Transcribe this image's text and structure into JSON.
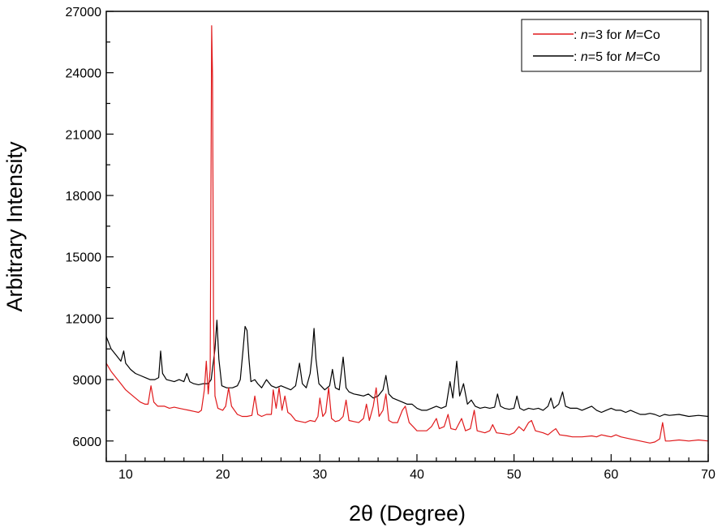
{
  "chart_data": {
    "type": "line",
    "xlabel": "2θ  (Degree)",
    "ylabel": "Arbitrary Intensity",
    "xlim": [
      8,
      70
    ],
    "ylim": [
      5000,
      27000
    ],
    "x_ticks": [
      10,
      20,
      30,
      40,
      50,
      60,
      70
    ],
    "y_ticks": [
      6000,
      9000,
      12000,
      15000,
      18000,
      21000,
      24000,
      27000
    ],
    "grid": false,
    "legend_position": "top-right",
    "series": [
      {
        "name": ": n=3 for M=Co",
        "name_parts": [
          ": ",
          "n",
          "=3 for ",
          "M",
          "=Co"
        ],
        "color": "#e0191b",
        "points": [
          [
            8.0,
            9800
          ],
          [
            8.5,
            9400
          ],
          [
            9.0,
            9100
          ],
          [
            9.5,
            8800
          ],
          [
            10.0,
            8500
          ],
          [
            10.5,
            8300
          ],
          [
            11.0,
            8100
          ],
          [
            11.5,
            7900
          ],
          [
            12.0,
            7800
          ],
          [
            12.3,
            7800
          ],
          [
            12.6,
            8700
          ],
          [
            12.9,
            7900
          ],
          [
            13.3,
            7700
          ],
          [
            14.0,
            7700
          ],
          [
            14.5,
            7600
          ],
          [
            15.0,
            7650
          ],
          [
            15.5,
            7600
          ],
          [
            16.0,
            7550
          ],
          [
            16.5,
            7500
          ],
          [
            17.0,
            7450
          ],
          [
            17.5,
            7400
          ],
          [
            17.8,
            7500
          ],
          [
            18.1,
            8500
          ],
          [
            18.3,
            9900
          ],
          [
            18.5,
            8300
          ],
          [
            18.7,
            9500
          ],
          [
            18.85,
            26300
          ],
          [
            18.95,
            23800
          ],
          [
            19.05,
            12000
          ],
          [
            19.2,
            8200
          ],
          [
            19.5,
            7600
          ],
          [
            20.0,
            7500
          ],
          [
            20.3,
            7700
          ],
          [
            20.6,
            8600
          ],
          [
            20.9,
            7700
          ],
          [
            21.5,
            7300
          ],
          [
            22.0,
            7200
          ],
          [
            22.5,
            7200
          ],
          [
            23.0,
            7250
          ],
          [
            23.3,
            8200
          ],
          [
            23.6,
            7300
          ],
          [
            24.0,
            7200
          ],
          [
            24.5,
            7300
          ],
          [
            25.0,
            7300
          ],
          [
            25.2,
            8500
          ],
          [
            25.5,
            7600
          ],
          [
            25.8,
            8600
          ],
          [
            26.1,
            7500
          ],
          [
            26.4,
            8200
          ],
          [
            26.7,
            7400
          ],
          [
            27.0,
            7300
          ],
          [
            27.5,
            7000
          ],
          [
            28.0,
            6950
          ],
          [
            28.5,
            6900
          ],
          [
            29.0,
            7000
          ],
          [
            29.5,
            6950
          ],
          [
            29.8,
            7200
          ],
          [
            30.0,
            8100
          ],
          [
            30.3,
            7200
          ],
          [
            30.6,
            7400
          ],
          [
            30.9,
            8600
          ],
          [
            31.2,
            7100
          ],
          [
            31.6,
            6950
          ],
          [
            32.0,
            7000
          ],
          [
            32.4,
            7200
          ],
          [
            32.7,
            8000
          ],
          [
            33.0,
            7000
          ],
          [
            33.5,
            6950
          ],
          [
            34.0,
            6900
          ],
          [
            34.5,
            7100
          ],
          [
            34.8,
            7800
          ],
          [
            35.1,
            7000
          ],
          [
            35.5,
            7700
          ],
          [
            35.8,
            8600
          ],
          [
            36.1,
            7200
          ],
          [
            36.5,
            7500
          ],
          [
            36.8,
            8300
          ],
          [
            37.1,
            7000
          ],
          [
            37.5,
            6900
          ],
          [
            38.0,
            6900
          ],
          [
            38.5,
            7500
          ],
          [
            38.8,
            7700
          ],
          [
            39.2,
            6900
          ],
          [
            39.6,
            6700
          ],
          [
            40.0,
            6500
          ],
          [
            40.5,
            6500
          ],
          [
            41.0,
            6500
          ],
          [
            41.5,
            6700
          ],
          [
            42.0,
            7100
          ],
          [
            42.3,
            6600
          ],
          [
            42.8,
            6700
          ],
          [
            43.2,
            7300
          ],
          [
            43.5,
            6600
          ],
          [
            44.0,
            6550
          ],
          [
            44.6,
            7100
          ],
          [
            45.0,
            6500
          ],
          [
            45.5,
            6600
          ],
          [
            45.9,
            7500
          ],
          [
            46.2,
            6500
          ],
          [
            47.0,
            6400
          ],
          [
            47.5,
            6500
          ],
          [
            47.8,
            6800
          ],
          [
            48.2,
            6400
          ],
          [
            49.0,
            6350
          ],
          [
            49.5,
            6300
          ],
          [
            50.0,
            6400
          ],
          [
            50.5,
            6700
          ],
          [
            51.0,
            6500
          ],
          [
            51.5,
            6900
          ],
          [
            51.8,
            7000
          ],
          [
            52.2,
            6500
          ],
          [
            53.0,
            6400
          ],
          [
            53.5,
            6300
          ],
          [
            54.0,
            6500
          ],
          [
            54.3,
            6600
          ],
          [
            54.7,
            6300
          ],
          [
            55.5,
            6250
          ],
          [
            56.0,
            6200
          ],
          [
            57.0,
            6200
          ],
          [
            58.0,
            6250
          ],
          [
            58.5,
            6200
          ],
          [
            59.0,
            6300
          ],
          [
            59.5,
            6250
          ],
          [
            60.0,
            6200
          ],
          [
            60.5,
            6300
          ],
          [
            61.0,
            6200
          ],
          [
            62.0,
            6100
          ],
          [
            63.0,
            6000
          ],
          [
            64.0,
            5900
          ],
          [
            64.5,
            5950
          ],
          [
            65.0,
            6100
          ],
          [
            65.3,
            6900
          ],
          [
            65.6,
            6000
          ],
          [
            66.0,
            6000
          ],
          [
            67.0,
            6050
          ],
          [
            68.0,
            6000
          ],
          [
            69.0,
            6050
          ],
          [
            70.0,
            6000
          ]
        ]
      },
      {
        "name": ": n=5 for M=Co",
        "name_parts": [
          ": ",
          "n",
          "=5 for ",
          "M",
          "=Co"
        ],
        "color": "#000000",
        "points": [
          [
            8.0,
            11100
          ],
          [
            8.5,
            10500
          ],
          [
            9.0,
            10200
          ],
          [
            9.5,
            9900
          ],
          [
            9.8,
            10400
          ],
          [
            10.0,
            9800
          ],
          [
            10.5,
            9500
          ],
          [
            11.0,
            9300
          ],
          [
            11.5,
            9200
          ],
          [
            12.0,
            9100
          ],
          [
            12.5,
            9000
          ],
          [
            13.0,
            9000
          ],
          [
            13.4,
            9100
          ],
          [
            13.6,
            10400
          ],
          [
            13.8,
            9300
          ],
          [
            14.2,
            9000
          ],
          [
            15.0,
            8900
          ],
          [
            15.5,
            9000
          ],
          [
            16.0,
            8900
          ],
          [
            16.3,
            9300
          ],
          [
            16.6,
            8900
          ],
          [
            17.0,
            8800
          ],
          [
            17.5,
            8750
          ],
          [
            18.0,
            8800
          ],
          [
            18.5,
            8800
          ],
          [
            18.8,
            9000
          ],
          [
            19.2,
            10500
          ],
          [
            19.4,
            11900
          ],
          [
            19.6,
            10000
          ],
          [
            19.9,
            8700
          ],
          [
            20.4,
            8600
          ],
          [
            21.0,
            8600
          ],
          [
            21.5,
            8700
          ],
          [
            21.8,
            9000
          ],
          [
            22.1,
            10500
          ],
          [
            22.3,
            11600
          ],
          [
            22.5,
            11400
          ],
          [
            22.7,
            10000
          ],
          [
            22.9,
            8900
          ],
          [
            23.3,
            9000
          ],
          [
            23.6,
            8800
          ],
          [
            24.0,
            8600
          ],
          [
            24.5,
            9000
          ],
          [
            25.0,
            8700
          ],
          [
            25.5,
            8600
          ],
          [
            26.0,
            8700
          ],
          [
            26.5,
            8600
          ],
          [
            27.0,
            8500
          ],
          [
            27.5,
            8700
          ],
          [
            27.9,
            9800
          ],
          [
            28.2,
            8800
          ],
          [
            28.6,
            8600
          ],
          [
            29.0,
            9300
          ],
          [
            29.2,
            10200
          ],
          [
            29.4,
            11500
          ],
          [
            29.6,
            10000
          ],
          [
            29.9,
            8800
          ],
          [
            30.5,
            8500
          ],
          [
            31.0,
            8700
          ],
          [
            31.3,
            9500
          ],
          [
            31.6,
            8600
          ],
          [
            32.0,
            8500
          ],
          [
            32.4,
            10100
          ],
          [
            32.7,
            8600
          ],
          [
            33.0,
            8400
          ],
          [
            33.5,
            8300
          ],
          [
            34.0,
            8250
          ],
          [
            34.5,
            8200
          ],
          [
            35.0,
            8300
          ],
          [
            35.5,
            8100
          ],
          [
            36.0,
            8200
          ],
          [
            36.5,
            8500
          ],
          [
            36.8,
            9200
          ],
          [
            37.1,
            8300
          ],
          [
            37.5,
            8100
          ],
          [
            38.0,
            8000
          ],
          [
            38.5,
            7900
          ],
          [
            39.0,
            7800
          ],
          [
            39.5,
            7800
          ],
          [
            40.0,
            7600
          ],
          [
            40.5,
            7500
          ],
          [
            41.0,
            7500
          ],
          [
            41.5,
            7600
          ],
          [
            42.0,
            7700
          ],
          [
            42.5,
            7600
          ],
          [
            43.0,
            7700
          ],
          [
            43.4,
            8900
          ],
          [
            43.7,
            8100
          ],
          [
            44.1,
            9900
          ],
          [
            44.4,
            8200
          ],
          [
            44.8,
            8800
          ],
          [
            45.2,
            7800
          ],
          [
            45.6,
            8000
          ],
          [
            46.0,
            7700
          ],
          [
            46.5,
            7600
          ],
          [
            47.0,
            7650
          ],
          [
            47.5,
            7600
          ],
          [
            48.0,
            7650
          ],
          [
            48.3,
            8300
          ],
          [
            48.6,
            7700
          ],
          [
            49.0,
            7600
          ],
          [
            49.5,
            7550
          ],
          [
            50.0,
            7600
          ],
          [
            50.3,
            8200
          ],
          [
            50.6,
            7600
          ],
          [
            51.0,
            7500
          ],
          [
            51.5,
            7600
          ],
          [
            52.0,
            7550
          ],
          [
            52.5,
            7600
          ],
          [
            53.0,
            7500
          ],
          [
            53.5,
            7700
          ],
          [
            53.8,
            8100
          ],
          [
            54.1,
            7600
          ],
          [
            54.6,
            7800
          ],
          [
            55.0,
            8400
          ],
          [
            55.3,
            7700
          ],
          [
            55.8,
            7600
          ],
          [
            56.5,
            7600
          ],
          [
            57.0,
            7500
          ],
          [
            57.5,
            7600
          ],
          [
            58.0,
            7700
          ],
          [
            58.5,
            7500
          ],
          [
            59.0,
            7400
          ],
          [
            59.5,
            7500
          ],
          [
            60.0,
            7600
          ],
          [
            60.5,
            7500
          ],
          [
            61.0,
            7500
          ],
          [
            61.5,
            7400
          ],
          [
            62.0,
            7500
          ],
          [
            62.5,
            7400
          ],
          [
            63.0,
            7300
          ],
          [
            63.5,
            7300
          ],
          [
            64.0,
            7350
          ],
          [
            64.5,
            7300
          ],
          [
            65.0,
            7200
          ],
          [
            65.5,
            7300
          ],
          [
            66.0,
            7250
          ],
          [
            67.0,
            7300
          ],
          [
            68.0,
            7200
          ],
          [
            69.0,
            7250
          ],
          [
            70.0,
            7200
          ]
        ]
      }
    ]
  }
}
